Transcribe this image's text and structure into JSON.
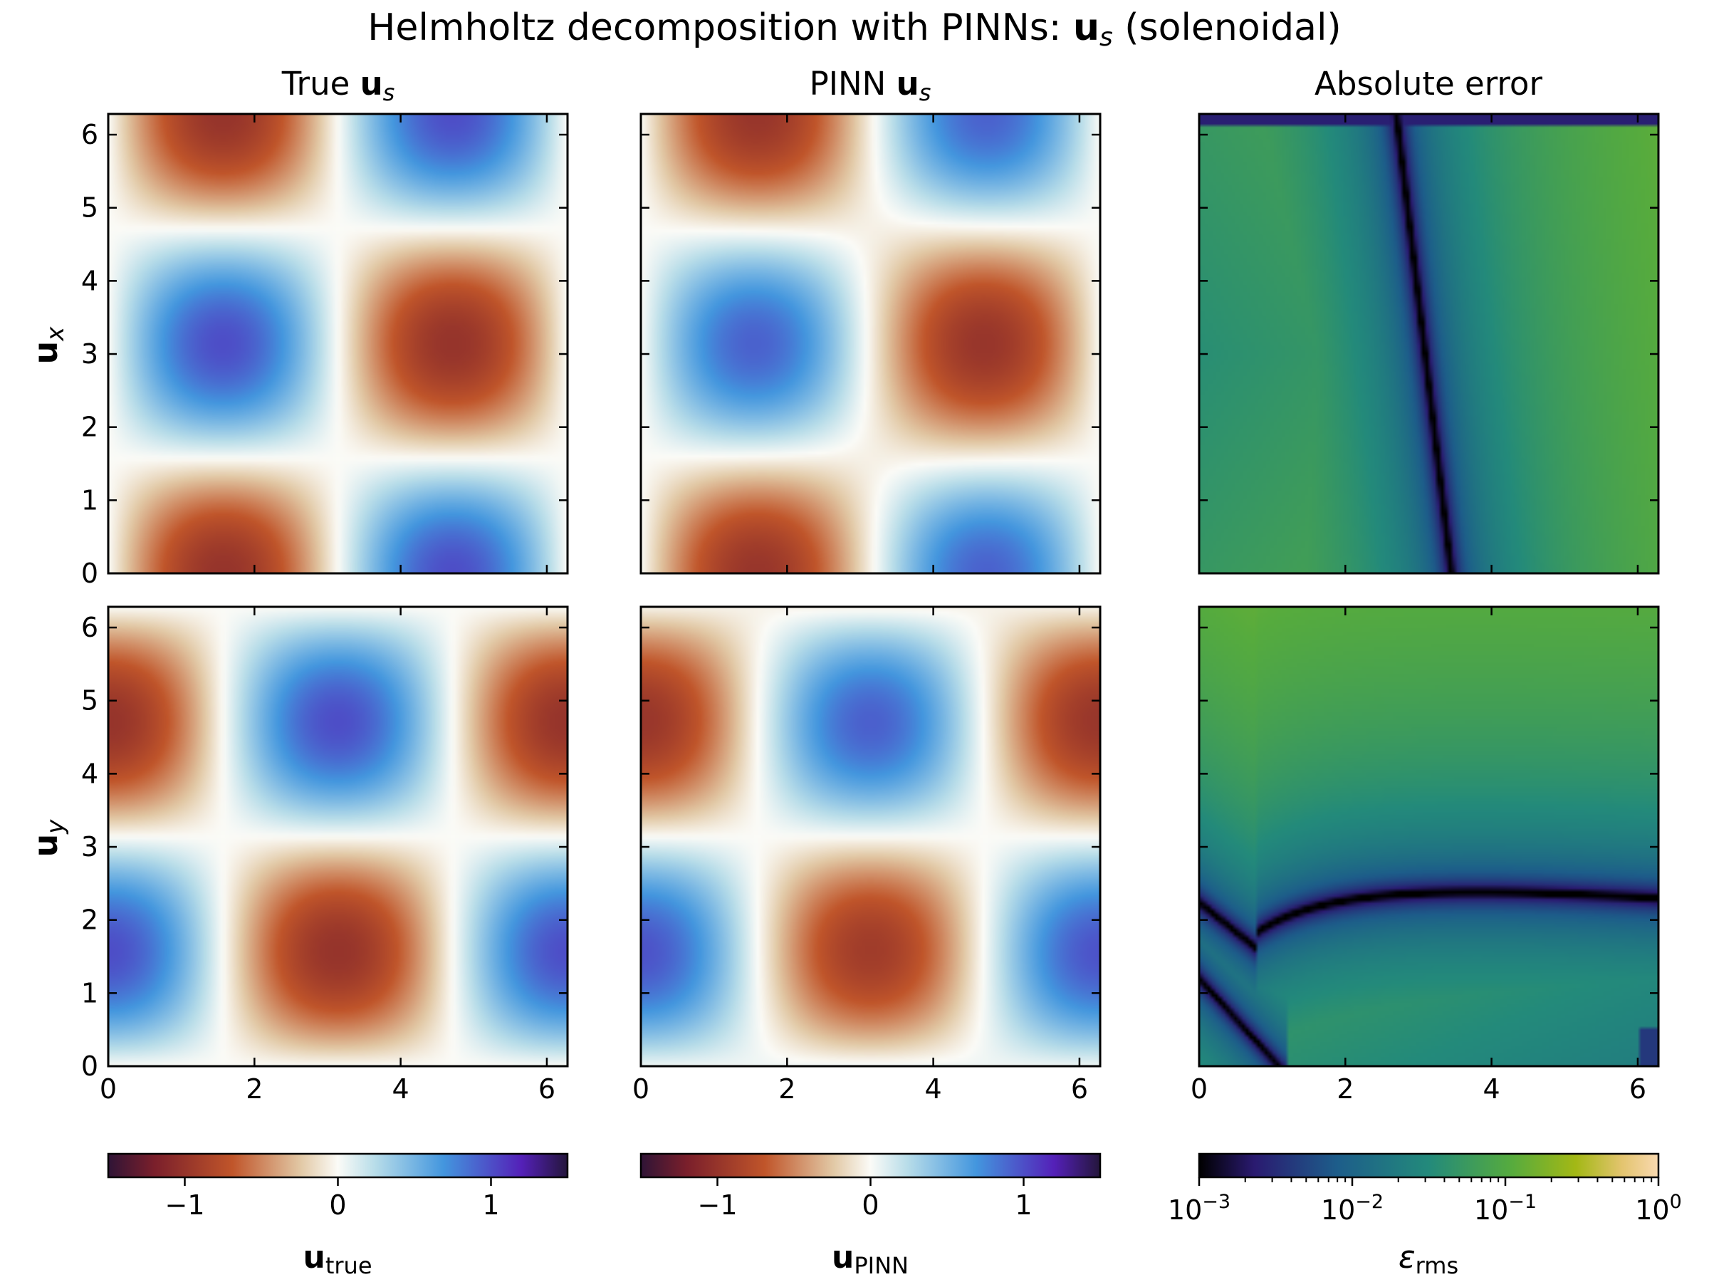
{
  "figure": {
    "title_main": "Helmholtz decomposition with PINNs: ",
    "title_bold": "u",
    "title_sub": "s",
    "title_tail": " (solenoidal)"
  },
  "columns": [
    {
      "prefix": "True ",
      "bold": "u",
      "sub": "s"
    },
    {
      "prefix": "PINN ",
      "bold": "u",
      "sub": "s"
    },
    {
      "prefix": "Absolute error",
      "bold": "",
      "sub": ""
    }
  ],
  "rows": [
    {
      "bold": "u",
      "sub": "x"
    },
    {
      "bold": "u",
      "sub": "y"
    }
  ],
  "colorbars": [
    {
      "label_bold": "u",
      "label_sub": "true",
      "ticks": [
        "−1",
        "0",
        "1"
      ],
      "tick_values": [
        -1,
        0,
        1
      ],
      "range": [
        -1.5,
        1.5
      ],
      "colormap": "twilight-like diverging"
    },
    {
      "label_bold": "u",
      "label_sub": "PINN",
      "ticks": [
        "−1",
        "0",
        "1"
      ],
      "tick_values": [
        -1,
        0,
        1
      ],
      "range": [
        -1.5,
        1.5
      ],
      "colormap": "twilight-like diverging"
    },
    {
      "label_sym": "ε",
      "label_sub": "rms",
      "ticks": [
        {
          "base": "10",
          "exp": "−3"
        },
        {
          "base": "10",
          "exp": "−2"
        },
        {
          "base": "10",
          "exp": "−1"
        },
        {
          "base": "10",
          "exp": "0"
        }
      ],
      "log_range": [
        -3,
        0
      ],
      "colormap": "gist_earth-like"
    }
  ],
  "chart_data": [
    {
      "type": "heatmap",
      "row": "u_x",
      "column": "True u_s",
      "field": "sin(x)*cos(y)",
      "xlim": [
        0,
        6.283
      ],
      "ylim": [
        0,
        6.283
      ],
      "xticks": [
        "0",
        "2",
        "4",
        "6"
      ],
      "yticks": [
        "0",
        "1",
        "2",
        "3",
        "4",
        "5",
        "6"
      ],
      "clim": [
        -1.5,
        1.5
      ]
    },
    {
      "type": "heatmap",
      "row": "u_x",
      "column": "PINN u_s",
      "field": "approx sin(x)*cos(y)",
      "xlim": [
        0,
        6.283
      ],
      "ylim": [
        0,
        6.283
      ],
      "clim": [
        -1.5,
        1.5
      ]
    },
    {
      "type": "heatmap",
      "row": "u_x",
      "column": "Absolute error",
      "log_range": [
        -3,
        0
      ],
      "note": "minimum-error curve from (3.45, 0) to (2.7, 6.28)"
    },
    {
      "type": "heatmap",
      "row": "u_y",
      "column": "True u_s",
      "field": "-cos(x)*sin(y)",
      "xlim": [
        0,
        6.283
      ],
      "ylim": [
        0,
        6.283
      ],
      "xticks": [
        "0",
        "2",
        "4",
        "6"
      ],
      "yticks": [
        "0",
        "1",
        "2",
        "3",
        "4",
        "5",
        "6"
      ],
      "clim": [
        -1.5,
        1.5
      ]
    },
    {
      "type": "heatmap",
      "row": "u_y",
      "column": "PINN u_s",
      "field": "approx -cos(x)*sin(y)",
      "xlim": [
        0,
        6.283
      ],
      "ylim": [
        0,
        6.283
      ],
      "xticks": [
        "0",
        "2",
        "4",
        "6"
      ],
      "clim": [
        -1.5,
        1.5
      ]
    },
    {
      "type": "heatmap",
      "row": "u_y",
      "column": "Absolute error",
      "xticks": [
        "0",
        "2",
        "4",
        "6"
      ],
      "log_range": [
        -3,
        0
      ],
      "note": "minimum-error curve near y=2.3, branching to lower-left"
    }
  ]
}
